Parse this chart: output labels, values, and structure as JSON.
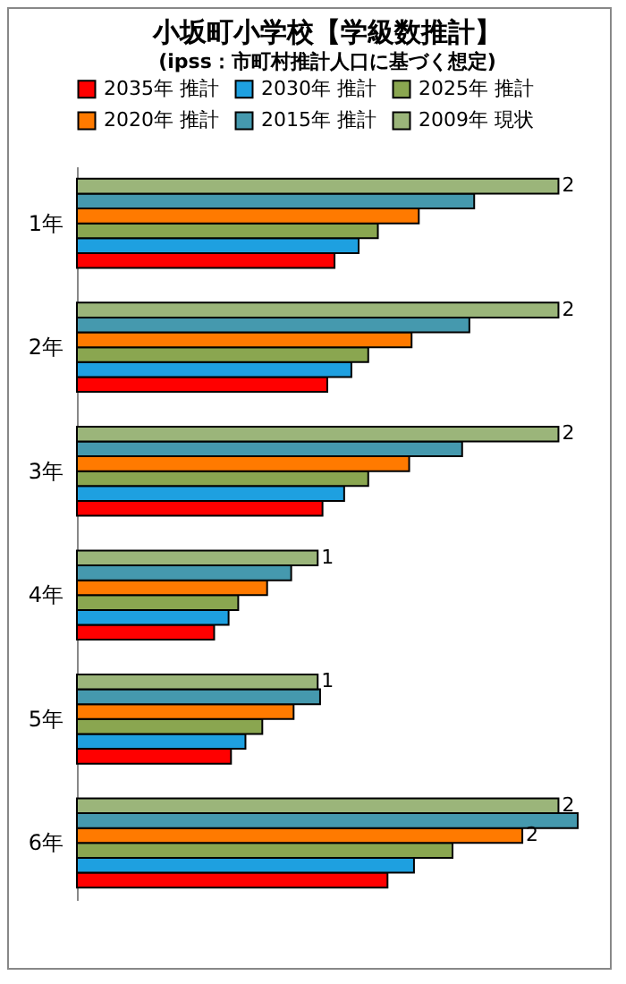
{
  "chart_data": {
    "type": "bar",
    "orientation": "horizontal",
    "title": "小坂町小学校【学級数推計】",
    "subtitle": "(ipss：市町村推計人口に基づく想定)",
    "categories": [
      "1年",
      "2年",
      "3年",
      "4年",
      "5年",
      "6年"
    ],
    "legend": "top",
    "series": [
      {
        "name": "2035年 推計",
        "color": "#ff0000",
        "values": [
          1.07,
          1.04,
          1.02,
          0.57,
          0.64,
          1.29
        ]
      },
      {
        "name": "2030年 推計",
        "color": "#1ea0e0",
        "values": [
          1.17,
          1.14,
          1.11,
          0.63,
          0.7,
          1.4
        ]
      },
      {
        "name": "2025年 推計",
        "color": "#8aa650",
        "values": [
          1.25,
          1.21,
          1.21,
          0.67,
          0.77,
          1.56
        ]
      },
      {
        "name": "2020年 推計",
        "color": "#ff7a00",
        "values": [
          1.42,
          1.39,
          1.38,
          0.79,
          0.9,
          1.85
        ],
        "value_labels": [
          null,
          null,
          null,
          null,
          null,
          "2"
        ]
      },
      {
        "name": "2015年 推計",
        "color": "#4599ae",
        "values": [
          1.65,
          1.63,
          1.6,
          0.89,
          1.01,
          2.08
        ]
      },
      {
        "name": "2009年 現状",
        "color": "#9bb57a",
        "values": [
          2,
          2,
          2,
          1,
          1,
          2
        ],
        "value_labels": [
          "2",
          "2",
          "2",
          "1",
          "1",
          "2"
        ]
      }
    ]
  }
}
